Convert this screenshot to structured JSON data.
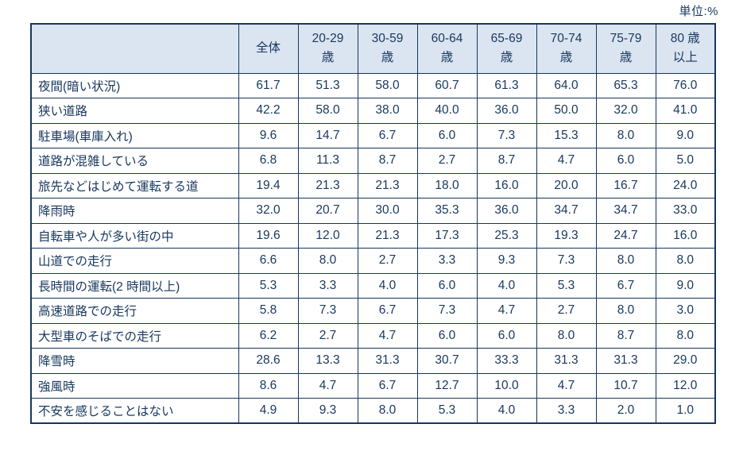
{
  "chart_data": {
    "type": "table",
    "unit": "単位:%",
    "columns": [
      "全体",
      "20-29歳",
      "30-59歳",
      "60-64歳",
      "65-69歳",
      "70-74歳",
      "75-79歳",
      "80歳以上"
    ],
    "column_lines": [
      [
        "全体"
      ],
      [
        "20-29",
        "歳"
      ],
      [
        "30-59",
        "歳"
      ],
      [
        "60-64",
        "歳"
      ],
      [
        "65-69",
        "歳"
      ],
      [
        "70-74",
        "歳"
      ],
      [
        "75-79",
        "歳"
      ],
      [
        "80 歳",
        "以上"
      ]
    ],
    "rows": [
      {
        "label": "夜間(暗い状況)",
        "values": [
          61.7,
          51.3,
          58.0,
          60.7,
          61.3,
          64.0,
          65.3,
          76.0
        ]
      },
      {
        "label": "狭い道路",
        "values": [
          42.2,
          58.0,
          38.0,
          40.0,
          36.0,
          50.0,
          32.0,
          41.0
        ]
      },
      {
        "label": "駐車場(車庫入れ)",
        "values": [
          9.6,
          14.7,
          6.7,
          6.0,
          7.3,
          15.3,
          8.0,
          9.0
        ]
      },
      {
        "label": "道路が混雑している",
        "values": [
          6.8,
          11.3,
          8.7,
          2.7,
          8.7,
          4.7,
          6.0,
          5.0
        ]
      },
      {
        "label": "旅先などはじめて運転する道",
        "values": [
          19.4,
          21.3,
          21.3,
          18.0,
          16.0,
          20.0,
          16.7,
          24.0
        ]
      },
      {
        "label": "降雨時",
        "values": [
          32.0,
          20.7,
          30.0,
          35.3,
          36.0,
          34.7,
          34.7,
          33.0
        ]
      },
      {
        "label": "自転車や人が多い街の中",
        "values": [
          19.6,
          12.0,
          21.3,
          17.3,
          25.3,
          19.3,
          24.7,
          16.0
        ]
      },
      {
        "label": "山道での走行",
        "values": [
          6.6,
          8.0,
          2.7,
          3.3,
          9.3,
          7.3,
          8.0,
          8.0
        ]
      },
      {
        "label": "長時間の運転(2 時間以上)",
        "values": [
          5.3,
          3.3,
          4.0,
          6.0,
          4.0,
          5.3,
          6.7,
          9.0
        ]
      },
      {
        "label": "高速道路での走行",
        "values": [
          5.8,
          7.3,
          6.7,
          7.3,
          4.7,
          2.7,
          8.0,
          3.0
        ]
      },
      {
        "label": "大型車のそばでの走行",
        "values": [
          6.2,
          2.7,
          4.7,
          6.0,
          6.0,
          8.0,
          8.7,
          8.0
        ]
      },
      {
        "label": "降雪時",
        "values": [
          28.6,
          13.3,
          31.3,
          30.7,
          33.3,
          31.3,
          31.3,
          29.0
        ]
      },
      {
        "label": "強風時",
        "values": [
          8.6,
          4.7,
          6.7,
          12.7,
          10.0,
          4.7,
          10.7,
          12.0
        ]
      },
      {
        "label": "不安を感じることはない",
        "values": [
          4.9,
          9.3,
          8.0,
          5.3,
          4.0,
          3.3,
          2.0,
          1.0
        ]
      }
    ],
    "colors": {
      "header_background": "#dbe5f1",
      "border": "#17375e",
      "text": "#17375e",
      "body_background": "#ffffff"
    },
    "title": "",
    "legend_position": "none",
    "grid": true
  }
}
